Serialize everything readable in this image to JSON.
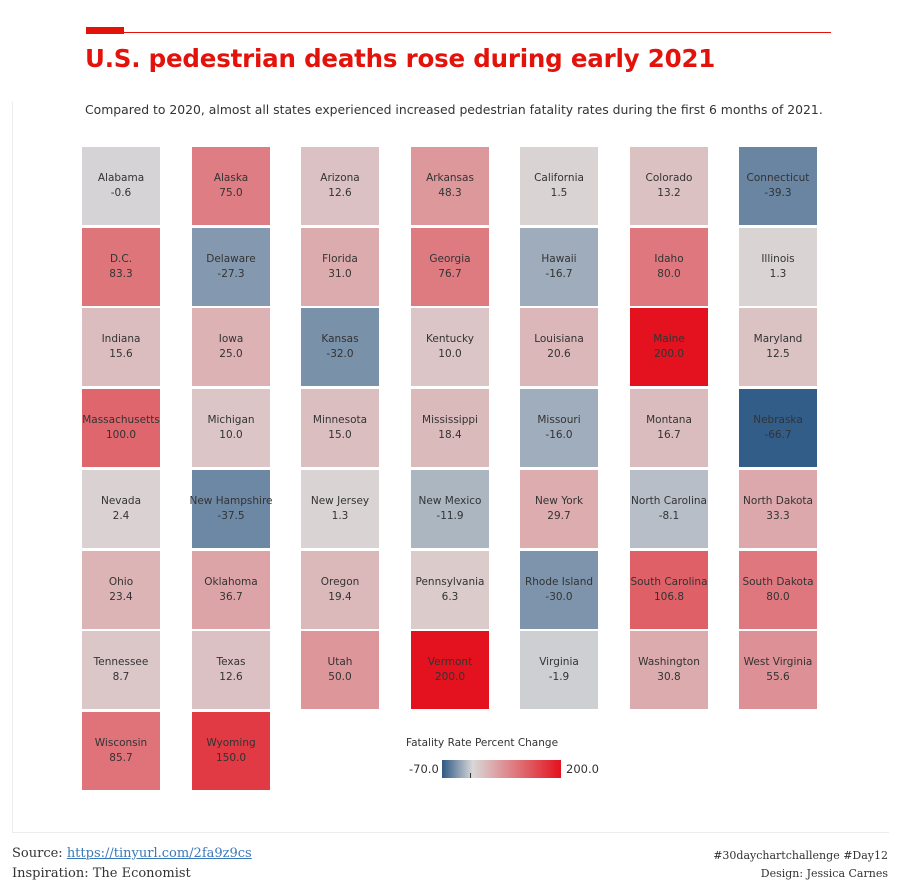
{
  "header": {
    "title": "U.S. pedestrian deaths rose during early 2021",
    "subtitle": "Compared to 2020, almost all states experienced increased pedestrian fatality rates during the first 6 months of 2021."
  },
  "chart_data": {
    "type": "heatmap",
    "title": "U.S. pedestrian deaths rose during early 2021",
    "subtitle": "Compared to 2020, almost all states experienced increased pedestrian fatality rates during the first 6 months of 2021.",
    "value_label": "Fatality Rate Percent Change",
    "columns_per_row": 7,
    "color_range": [
      -70.0,
      200.0
    ],
    "colors": {
      "low": "#2c5985",
      "mid": "#dad7d7",
      "high": "#e3121e"
    },
    "states": [
      {
        "name": "Alabama",
        "value": "-0.6"
      },
      {
        "name": "Alaska",
        "value": "75.0"
      },
      {
        "name": "Arizona",
        "value": "12.6"
      },
      {
        "name": "Arkansas",
        "value": "48.3"
      },
      {
        "name": "California",
        "value": "1.5"
      },
      {
        "name": "Colorado",
        "value": "13.2"
      },
      {
        "name": "Connecticut",
        "value": "-39.3"
      },
      {
        "name": "D.C.",
        "value": "83.3"
      },
      {
        "name": "Delaware",
        "value": "-27.3"
      },
      {
        "name": "Florida",
        "value": "31.0"
      },
      {
        "name": "Georgia",
        "value": "76.7"
      },
      {
        "name": "Hawaii",
        "value": "-16.7"
      },
      {
        "name": "Idaho",
        "value": "80.0"
      },
      {
        "name": "Illinois",
        "value": "1.3"
      },
      {
        "name": "Indiana",
        "value": "15.6"
      },
      {
        "name": "Iowa",
        "value": "25.0"
      },
      {
        "name": "Kansas",
        "value": "-32.0"
      },
      {
        "name": "Kentucky",
        "value": "10.0"
      },
      {
        "name": "Louisiana",
        "value": "20.6"
      },
      {
        "name": "Maine",
        "value": "200.0"
      },
      {
        "name": "Maryland",
        "value": "12.5"
      },
      {
        "name": "Massachusetts",
        "value": "100.0"
      },
      {
        "name": "Michigan",
        "value": "10.0"
      },
      {
        "name": "Minnesota",
        "value": "15.0"
      },
      {
        "name": "Mississippi",
        "value": "18.4"
      },
      {
        "name": "Missouri",
        "value": "-16.0"
      },
      {
        "name": "Montana",
        "value": "16.7"
      },
      {
        "name": "Nebraska",
        "value": "-66.7"
      },
      {
        "name": "Nevada",
        "value": "2.4"
      },
      {
        "name": "New Hampshire",
        "value": "-37.5"
      },
      {
        "name": "New Jersey",
        "value": "1.3"
      },
      {
        "name": "New Mexico",
        "value": "-11.9"
      },
      {
        "name": "New York",
        "value": "29.7"
      },
      {
        "name": "North Carolina",
        "value": "-8.1"
      },
      {
        "name": "North Dakota",
        "value": "33.3"
      },
      {
        "name": "Ohio",
        "value": "23.4"
      },
      {
        "name": "Oklahoma",
        "value": "36.7"
      },
      {
        "name": "Oregon",
        "value": "19.4"
      },
      {
        "name": "Pennsylvania",
        "value": "6.3"
      },
      {
        "name": "Rhode Island",
        "value": "-30.0"
      },
      {
        "name": "South Carolina",
        "value": "106.8"
      },
      {
        "name": "South Dakota",
        "value": "80.0"
      },
      {
        "name": "Tennessee",
        "value": "8.7"
      },
      {
        "name": "Texas",
        "value": "12.6"
      },
      {
        "name": "Utah",
        "value": "50.0"
      },
      {
        "name": "Vermont",
        "value": "200.0"
      },
      {
        "name": "Virginia",
        "value": "-1.9"
      },
      {
        "name": "Washington",
        "value": "30.8"
      },
      {
        "name": "West Virginia",
        "value": "55.6"
      },
      {
        "name": "Wisconsin",
        "value": "85.7"
      },
      {
        "name": "Wyoming",
        "value": "150.0"
      }
    ]
  },
  "legend": {
    "title": "Fatality Rate Percent Change",
    "min_label": "-70.0",
    "max_label": "200.0"
  },
  "footer": {
    "source_prefix": "Source: ",
    "source_link": "https://tinyurl.com/2fa9z9cs",
    "inspiration": "Inspiration: The Economist",
    "hashtag": "#30daychartchallenge #Day12",
    "design": "Design: Jessica Carnes"
  }
}
